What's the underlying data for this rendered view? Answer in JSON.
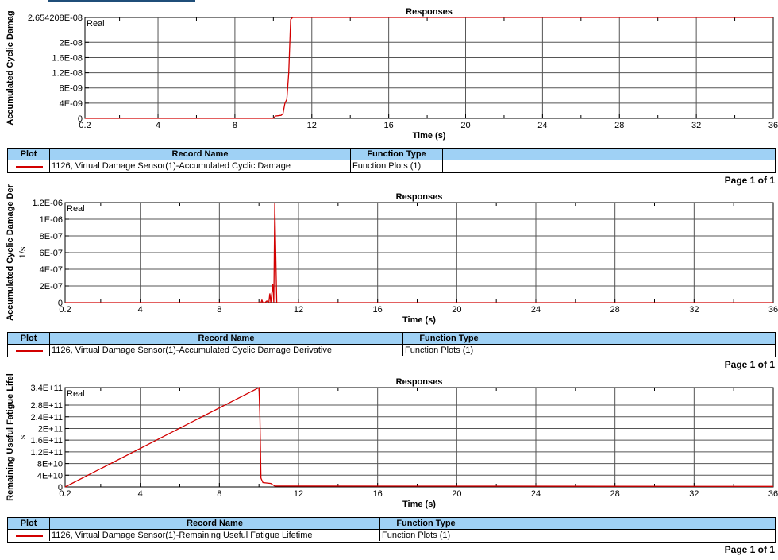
{
  "colors": {
    "series": "#d20000",
    "grid": "#555555",
    "legend_header": "#9fd1f5"
  },
  "panels": [
    {
      "chart_data": {
        "type": "line",
        "title": "Responses",
        "xlabel": "Time (s)",
        "ylabel": "Accumulated Cyclic Damag",
        "series_label": "Real",
        "xlim": [
          0.2,
          36
        ],
        "ylim": [
          0,
          2.654208e-08
        ],
        "x_ticks": [
          "0.2",
          "4",
          "8",
          "12",
          "16",
          "20",
          "24",
          "28",
          "32",
          "36"
        ],
        "y_ticks": [
          {
            "v": 0,
            "label": "0"
          },
          {
            "v": 4e-09,
            "label": "4E-09"
          },
          {
            "v": 8e-09,
            "label": "8E-09"
          },
          {
            "v": 1.2e-08,
            "label": "1.2E-08"
          },
          {
            "v": 1.6e-08,
            "label": "1.6E-08"
          },
          {
            "v": 2e-08,
            "label": "2E-08"
          },
          {
            "v": 2.654208e-08,
            "label": "2.654208E-08"
          }
        ],
        "series": [
          {
            "name": "1126, Virtual Damage Sensor(1)-Accumulated Cyclic Damage",
            "x": [
              0.2,
              10.0,
              10.1,
              10.4,
              10.5,
              10.6,
              10.7,
              10.8,
              10.9,
              11.0,
              36
            ],
            "y": [
              0,
              0,
              6e-10,
              8e-10,
              1.2e-09,
              4e-09,
              5e-09,
              1.2e-08,
              2.6e-08,
              2.654208e-08,
              2.654208e-08
            ]
          }
        ]
      },
      "legend": {
        "header_plot": "Plot",
        "header_record": "Record Name",
        "header_function": "Function Type",
        "record": "1126, Virtual Damage Sensor(1)-Accumulated Cyclic Damage",
        "function": "Function Plots (1)"
      },
      "page_label": "Page 1 of 1"
    },
    {
      "chart_data": {
        "type": "line",
        "title": "Responses",
        "xlabel": "Time (s)",
        "ylabel": "Accumulated Cyclic Damage Der",
        "ylabel2": "1/s",
        "series_label": "Real",
        "xlim": [
          0.2,
          36
        ],
        "ylim": [
          0,
          1.2e-06
        ],
        "x_ticks": [
          "0.2",
          "4",
          "8",
          "12",
          "16",
          "20",
          "24",
          "28",
          "32",
          "36"
        ],
        "y_ticks": [
          {
            "v": 0,
            "label": "0"
          },
          {
            "v": 2e-07,
            "label": "2E-07"
          },
          {
            "v": 4e-07,
            "label": "4E-07"
          },
          {
            "v": 6e-07,
            "label": "6E-07"
          },
          {
            "v": 8e-07,
            "label": "8E-07"
          },
          {
            "v": 1e-06,
            "label": "1E-06"
          },
          {
            "v": 1.2e-06,
            "label": "1.2E-06"
          }
        ],
        "series": [
          {
            "name": "1126, Virtual Damage Sensor(1)-Accumulated Cyclic Damage Derivative",
            "x": [
              0.2,
              10.1,
              10.15,
              10.2,
              10.3,
              10.4,
              10.5,
              10.55,
              10.6,
              10.7,
              10.75,
              10.8,
              10.9,
              11.0,
              36
            ],
            "y": [
              0,
              0,
              3e-08,
              0,
              0,
              2e-08,
              0,
              1.1e-07,
              0,
              2.2e-07,
              0,
              1.19e-06,
              0,
              0,
              0
            ]
          }
        ]
      },
      "legend": {
        "header_plot": "Plot",
        "header_record": "Record Name",
        "header_function": "Function Type",
        "record": "1126, Virtual Damage Sensor(1)-Accumulated Cyclic Damage Derivative",
        "function": "Function Plots (1)"
      },
      "page_label": "Page 1 of 1"
    },
    {
      "chart_data": {
        "type": "line",
        "title": "Responses",
        "xlabel": "Time (s)",
        "ylabel": "Remaining Useful Fatigue Lifel",
        "ylabel2": "s",
        "series_label": "Real",
        "xlim": [
          0.2,
          36
        ],
        "ylim": [
          0,
          340000000000.0
        ],
        "x_ticks": [
          "0.2",
          "4",
          "8",
          "12",
          "16",
          "20",
          "24",
          "28",
          "32",
          "36"
        ],
        "y_ticks": [
          {
            "v": 0,
            "label": "0"
          },
          {
            "v": 40000000000.0,
            "label": "4E+10"
          },
          {
            "v": 80000000000.0,
            "label": "8E+10"
          },
          {
            "v": 120000000000.0,
            "label": "1.2E+11"
          },
          {
            "v": 160000000000.0,
            "label": "1.6E+11"
          },
          {
            "v": 200000000000.0,
            "label": "2E+11"
          },
          {
            "v": 240000000000.0,
            "label": "2.4E+11"
          },
          {
            "v": 280000000000.0,
            "label": "2.8E+11"
          },
          {
            "v": 340000000000.0,
            "label": "3.4E+11"
          }
        ],
        "series": [
          {
            "name": "1126, Virtual Damage Sensor(1)-Remaining Useful Fatigue Lifetime",
            "x": [
              0.2,
              10.0,
              10.05,
              10.1,
              10.2,
              10.6,
              10.8,
              36
            ],
            "y": [
              0,
              340000000000.0,
              240000000000.0,
              30000000000.0,
              15000000000.0,
              12000000000.0,
              3000000000.0,
              2000000000.0
            ]
          }
        ]
      },
      "legend": {
        "header_plot": "Plot",
        "header_record": "Record Name",
        "header_function": "Function Type",
        "record": "1126, Virtual Damage Sensor(1)-Remaining Useful Fatigue Lifetime",
        "function": "Function Plots (1)"
      },
      "page_label": "Page 1 of 1"
    }
  ]
}
